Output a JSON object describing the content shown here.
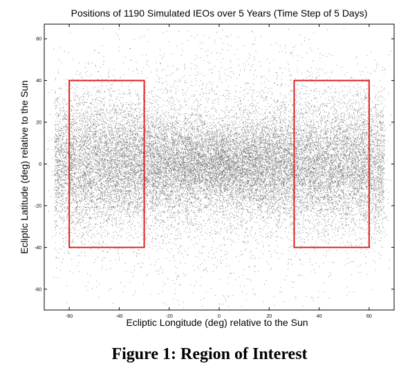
{
  "chart_data": {
    "type": "scatter",
    "title": "Positions of 1190 Simulated IEOs over 5 Years (Time Step of 5 Days)",
    "xlabel": "Ecliptic Longitude (deg) relative to the Sun",
    "ylabel": "Ecliptic Latitude (deg) relative to the Sun",
    "xlim": [
      -70,
      70
    ],
    "ylim": [
      -70,
      67
    ],
    "xticks": [
      -60,
      -40,
      -20,
      0,
      20,
      40,
      60
    ],
    "yticks": [
      60,
      40,
      20,
      0,
      -20,
      -40,
      -60
    ],
    "grid": false,
    "point_color": "#000000",
    "distribution": {
      "description_center": [
        0,
        0
      ],
      "concentration": "dense band along latitude 0, spread in longitude from about -65 to 65"
    },
    "regions": [
      {
        "x": [
          -60,
          -30
        ],
        "y": [
          -40,
          40
        ],
        "color": "#e02020"
      },
      {
        "x": [
          30,
          60
        ],
        "y": [
          -40,
          40
        ],
        "color": "#e02020"
      }
    ]
  },
  "caption": "Figure 1: Region of Interest"
}
